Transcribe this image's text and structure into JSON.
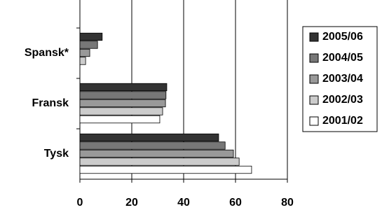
{
  "chart_data": {
    "type": "hbar",
    "categories": [
      "Spansk*",
      "Fransk",
      "Tysk"
    ],
    "series": [
      {
        "name": "2005/06",
        "color": "#333333",
        "values": [
          8.6,
          33.5,
          53.5
        ]
      },
      {
        "name": "2004/05",
        "color": "#777777",
        "values": [
          6.8,
          33.2,
          56
        ]
      },
      {
        "name": "2003/04",
        "color": "#999999",
        "values": [
          3.8,
          33,
          59.2
        ]
      },
      {
        "name": "2002/03",
        "color": "#cccccc",
        "values": [
          2.2,
          31.9,
          61.4
        ]
      },
      {
        "name": "2001/02",
        "color": "#ffffff",
        "values": [
          null,
          30.8,
          66.2
        ]
      }
    ],
    "xlim": [
      0,
      80
    ],
    "xticks": [
      0,
      20,
      40,
      60,
      80
    ],
    "grid": true
  }
}
